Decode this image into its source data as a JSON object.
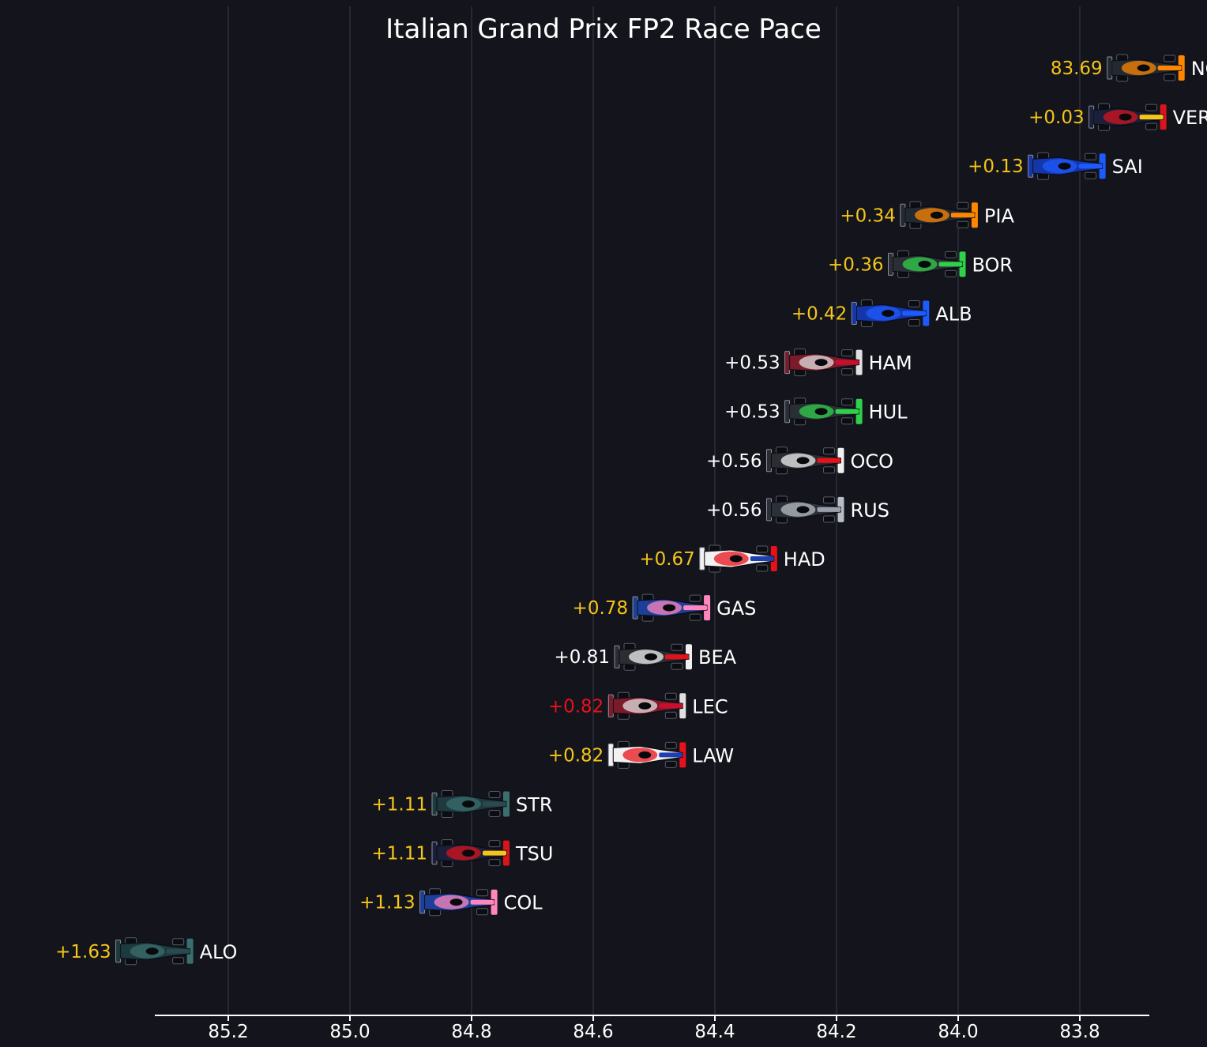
{
  "chart_data": {
    "type": "scatter",
    "title": "Italian Grand Prix FP2 Race Pace",
    "xlabel": "",
    "ylabel": "",
    "x_inverted": true,
    "xlim": [
      85.32,
      83.69
    ],
    "xticks": [
      85.2,
      85.0,
      84.8,
      84.6,
      84.4,
      84.2,
      84.0,
      83.8
    ],
    "grid": "vertical",
    "colors": {
      "background": "#13141c",
      "grid": "#3a3c48",
      "axis": "#ffffff",
      "text": "#ffffff",
      "yellow": "#f5c518",
      "red": "#e8111a"
    },
    "points": [
      {
        "driver": "NOR",
        "label": "83.69",
        "value": 83.69,
        "label_color": "yellow",
        "car": {
          "body": "#222933",
          "accent": "#ff8700",
          "nose": "#ff8700"
        }
      },
      {
        "driver": "VER",
        "label": "+0.03",
        "value": 83.72,
        "label_color": "yellow",
        "car": {
          "body": "#1b1f3a",
          "accent": "#d8141c",
          "nose": "#f5c518"
        }
      },
      {
        "driver": "SAI",
        "label": "+0.13",
        "value": 83.82,
        "label_color": "yellow",
        "car": {
          "body": "#1536a8",
          "accent": "#1e5bff",
          "nose": "#1e5bff"
        }
      },
      {
        "driver": "PIA",
        "label": "+0.34",
        "value": 84.03,
        "label_color": "yellow",
        "car": {
          "body": "#222933",
          "accent": "#ff8700",
          "nose": "#ff8700"
        }
      },
      {
        "driver": "BOR",
        "label": "+0.36",
        "value": 84.05,
        "label_color": "yellow",
        "car": {
          "body": "#2a2e36",
          "accent": "#2fd14a",
          "nose": "#2fd14a"
        }
      },
      {
        "driver": "ALB",
        "label": "+0.42",
        "value": 84.11,
        "label_color": "yellow",
        "car": {
          "body": "#1536a8",
          "accent": "#1e5bff",
          "nose": "#1e5bff"
        }
      },
      {
        "driver": "HAM",
        "label": "+0.53",
        "value": 84.22,
        "label_color": "white",
        "car": {
          "body": "#7a1a2a",
          "accent": "#e0e0e0",
          "nose": "#c8102e"
        }
      },
      {
        "driver": "HUL",
        "label": "+0.53",
        "value": 84.22,
        "label_color": "white",
        "car": {
          "body": "#2a2e36",
          "accent": "#2fd14a",
          "nose": "#2fd14a"
        }
      },
      {
        "driver": "OCO",
        "label": "+0.56",
        "value": 84.25,
        "label_color": "white",
        "car": {
          "body": "#2b2d33",
          "accent": "#f0f0f0",
          "nose": "#e8111a"
        }
      },
      {
        "driver": "RUS",
        "label": "+0.56",
        "value": 84.25,
        "label_color": "white",
        "car": {
          "body": "#2c3038",
          "accent": "#b8bcc4",
          "nose": "#9aa0aa"
        }
      },
      {
        "driver": "HAD",
        "label": "+0.67",
        "value": 84.36,
        "label_color": "yellow",
        "car": {
          "body": "#f2f2f2",
          "accent": "#e8111a",
          "nose": "#1e3fb0"
        }
      },
      {
        "driver": "GAS",
        "label": "+0.78",
        "value": 84.47,
        "label_color": "yellow",
        "car": {
          "body": "#1c3f9a",
          "accent": "#ff87bc",
          "nose": "#ff87bc"
        }
      },
      {
        "driver": "BEA",
        "label": "+0.81",
        "value": 84.5,
        "label_color": "white",
        "car": {
          "body": "#2b2d33",
          "accent": "#f0f0f0",
          "nose": "#e8111a"
        }
      },
      {
        "driver": "LEC",
        "label": "+0.82",
        "value": 84.51,
        "label_color": "red",
        "car": {
          "body": "#7a1a2a",
          "accent": "#e0e0e0",
          "nose": "#c8102e"
        }
      },
      {
        "driver": "LAW",
        "label": "+0.82",
        "value": 84.51,
        "label_color": "yellow",
        "car": {
          "body": "#f2f2f2",
          "accent": "#e8111a",
          "nose": "#1e3fb0"
        }
      },
      {
        "driver": "STR",
        "label": "+1.11",
        "value": 84.8,
        "label_color": "yellow",
        "car": {
          "body": "#1d3a3f",
          "accent": "#3b6e6e",
          "nose": "#2a4a50"
        }
      },
      {
        "driver": "TSU",
        "label": "+1.11",
        "value": 84.8,
        "label_color": "yellow",
        "car": {
          "body": "#1b1f3a",
          "accent": "#d8141c",
          "nose": "#f5c518"
        }
      },
      {
        "driver": "COL",
        "label": "+1.13",
        "value": 84.82,
        "label_color": "yellow",
        "car": {
          "body": "#1c3f9a",
          "accent": "#ff87bc",
          "nose": "#ff87bc"
        }
      },
      {
        "driver": "ALO",
        "label": "+1.63",
        "value": 85.32,
        "label_color": "yellow",
        "car": {
          "body": "#1d3a3f",
          "accent": "#3b6e6e",
          "nose": "#2a4a50"
        }
      }
    ]
  }
}
